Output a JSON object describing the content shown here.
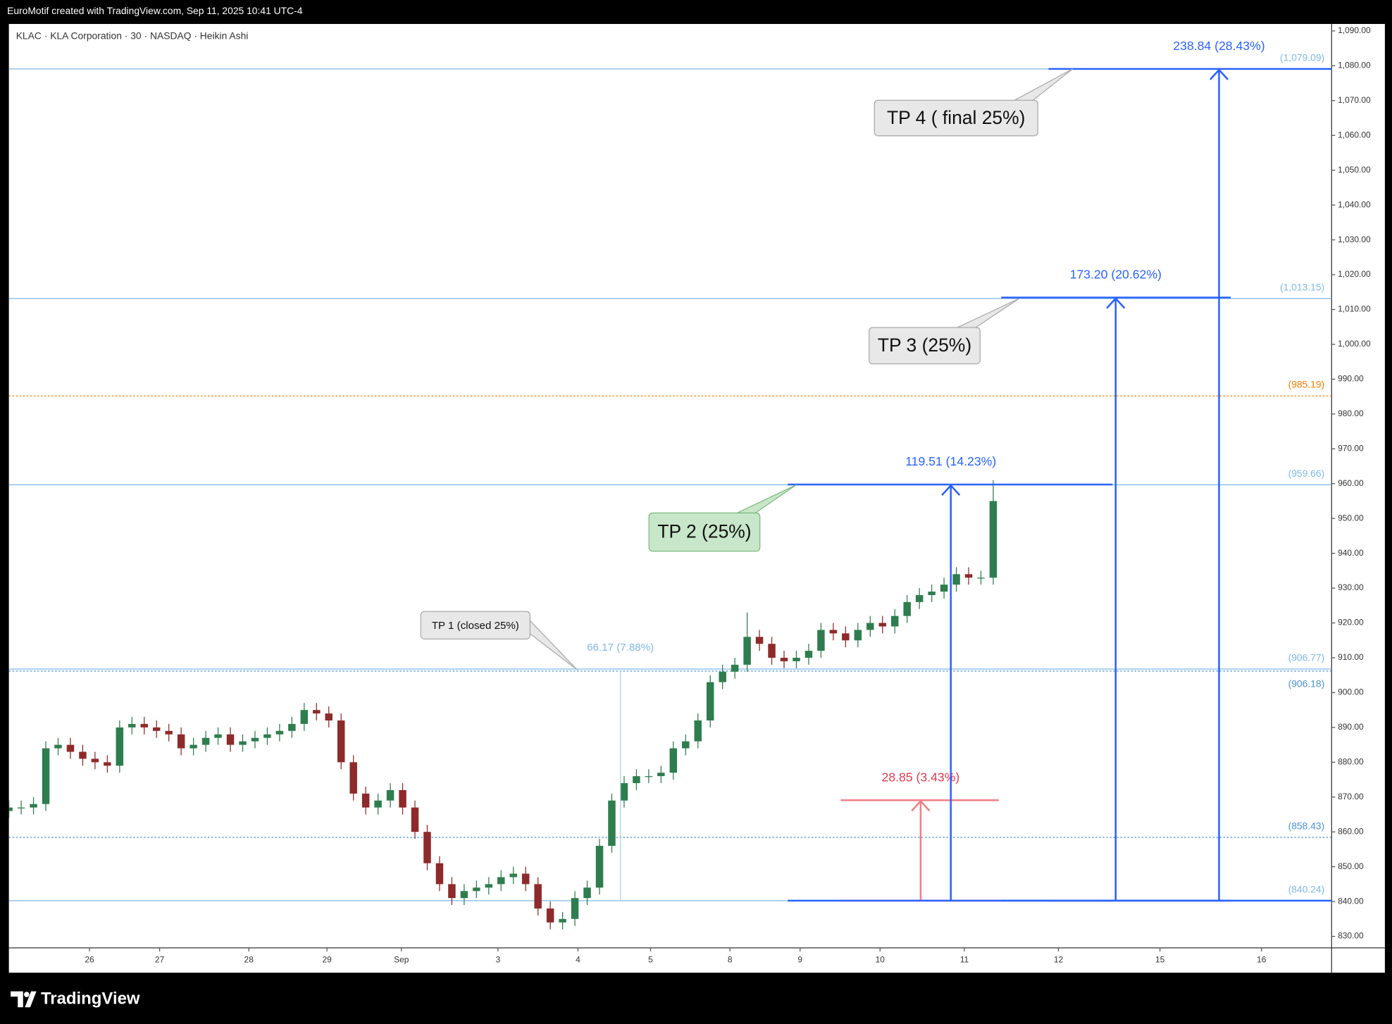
{
  "header": {
    "credit": "EuroMotif created with TradingView.com, Sep 11, 2025 10:41 UTC-4"
  },
  "footer": {
    "brand": "TradingView"
  },
  "chart_data": {
    "type": "candlestick",
    "title": "KLAC · KLA Corporation · 30 · NASDAQ · Heikin Ashi",
    "up_color": "#2e7d4f",
    "down_color": "#8e2a2a",
    "x": [
      0,
      2,
      4,
      6,
      8,
      10,
      12,
      14,
      16,
      18,
      20,
      22,
      24,
      26,
      28,
      30,
      32,
      34,
      36,
      38,
      40,
      42,
      44,
      46,
      48,
      50,
      52,
      54,
      56,
      58,
      60,
      62,
      64,
      66,
      68,
      70,
      72,
      74,
      76,
      78,
      80,
      82,
      84,
      86,
      88,
      90,
      92,
      94,
      96,
      98,
      100,
      102,
      104,
      106,
      108,
      110,
      112,
      114,
      116,
      118,
      120,
      122,
      124,
      126,
      128,
      130,
      132,
      134,
      136,
      138,
      140,
      142,
      144,
      146,
      148,
      150,
      152,
      154,
      156,
      158,
      160
    ],
    "open": [
      866,
      867,
      867,
      868,
      884,
      885,
      883,
      881,
      880,
      879,
      890,
      891,
      890,
      889,
      888,
      884,
      885,
      887,
      888,
      885,
      886,
      887,
      888,
      889,
      891,
      895,
      894,
      892,
      880,
      871,
      867,
      869,
      872,
      867,
      860,
      851,
      845,
      841,
      843,
      844,
      845,
      847,
      848,
      845,
      838,
      834,
      835,
      841,
      844,
      856,
      869,
      874,
      876,
      876,
      877,
      884,
      886,
      892,
      903,
      906,
      908,
      916,
      914,
      910,
      909,
      910,
      912,
      918,
      917,
      915,
      918,
      920,
      919,
      922,
      926,
      928,
      929,
      931,
      934,
      933,
      933
    ],
    "high": [
      869,
      869,
      870,
      886,
      887,
      887,
      885,
      883,
      882,
      892,
      893,
      893,
      892,
      891,
      890,
      887,
      889,
      890,
      890,
      888,
      889,
      890,
      891,
      893,
      897,
      897,
      896,
      894,
      882,
      873,
      871,
      874,
      874,
      869,
      862,
      853,
      847,
      845,
      846,
      847,
      849,
      850,
      850,
      847,
      840,
      837,
      843,
      846,
      858,
      871,
      876,
      878,
      878,
      879,
      886,
      888,
      894,
      905,
      908,
      910,
      923,
      918,
      916,
      912,
      912,
      914,
      920,
      920,
      919,
      920,
      922,
      922,
      924,
      928,
      930,
      931,
      933,
      936,
      936,
      935,
      961
    ],
    "low": [
      864,
      865,
      865,
      866,
      882,
      881,
      879,
      878,
      877,
      877,
      888,
      888,
      887,
      886,
      882,
      882,
      883,
      885,
      883,
      883,
      884,
      885,
      886,
      887,
      889,
      892,
      890,
      878,
      869,
      865,
      865,
      867,
      865,
      858,
      849,
      843,
      839,
      839,
      841,
      842,
      843,
      845,
      843,
      836,
      832,
      832,
      833,
      839,
      842,
      854,
      867,
      872,
      874,
      874,
      875,
      882,
      884,
      890,
      901,
      904,
      906,
      912,
      908,
      907,
      907,
      908,
      910,
      915,
      913,
      913,
      916,
      917,
      917,
      920,
      924,
      926,
      927,
      929,
      931,
      931,
      931
    ],
    "close": [
      867,
      867,
      868,
      884,
      885,
      883,
      881,
      880,
      879,
      890,
      891,
      890,
      889,
      888,
      884,
      885,
      887,
      888,
      885,
      886,
      887,
      888,
      889,
      891,
      895,
      894,
      892,
      880,
      871,
      867,
      869,
      872,
      867,
      860,
      851,
      845,
      841,
      843,
      844,
      845,
      847,
      848,
      845,
      838,
      834,
      835,
      841,
      844,
      856,
      869,
      874,
      876,
      876,
      877,
      884,
      886,
      892,
      903,
      906,
      908,
      916,
      914,
      910,
      909,
      910,
      912,
      918,
      917,
      915,
      918,
      920,
      919,
      922,
      926,
      928,
      929,
      931,
      934,
      933,
      933,
      955
    ],
    "xlim": [
      0,
      215
    ],
    "ylim": [
      826.7,
      1092
    ],
    "xticks": [
      {
        "value": 13.1,
        "label": "26"
      },
      {
        "value": 24.5,
        "label": "27"
      },
      {
        "value": 39,
        "label": "28"
      },
      {
        "value": 51.7,
        "label": "29"
      },
      {
        "value": 63.8,
        "label": "Sep"
      },
      {
        "value": 79.5,
        "label": "3"
      },
      {
        "value": 92.5,
        "label": "4"
      },
      {
        "value": 104.3,
        "label": "5"
      },
      {
        "value": 117.2,
        "label": "8"
      },
      {
        "value": 128.6,
        "label": "9"
      },
      {
        "value": 141.6,
        "label": "10"
      },
      {
        "value": 155.3,
        "label": "11"
      },
      {
        "value": 170.6,
        "label": "12"
      },
      {
        "value": 187.1,
        "label": "15"
      },
      {
        "value": 203.6,
        "label": "16"
      }
    ],
    "yticks": [
      {
        "value": 830,
        "label": "830.00"
      },
      {
        "value": 840,
        "label": "840.00"
      },
      {
        "value": 850,
        "label": "850.00"
      },
      {
        "value": 860,
        "label": "860.00"
      },
      {
        "value": 870,
        "label": "870.00"
      },
      {
        "value": 880,
        "label": "880.00"
      },
      {
        "value": 890,
        "label": "890.00"
      },
      {
        "value": 900,
        "label": "900.00"
      },
      {
        "value": 910,
        "label": "910.00"
      },
      {
        "value": 920,
        "label": "920.00"
      },
      {
        "value": 930,
        "label": "930.00"
      },
      {
        "value": 940,
        "label": "940.00"
      },
      {
        "value": 950,
        "label": "950.00"
      },
      {
        "value": 960,
        "label": "960.00"
      },
      {
        "value": 970,
        "label": "970.00"
      },
      {
        "value": 980,
        "label": "980.00"
      },
      {
        "value": 990,
        "label": "990.00"
      },
      {
        "value": 1000,
        "label": "1,000.00"
      },
      {
        "value": 1010,
        "label": "1,010.00"
      },
      {
        "value": 1020,
        "label": "1,020.00"
      },
      {
        "value": 1030,
        "label": "1,030.00"
      },
      {
        "value": 1040,
        "label": "1,040.00"
      },
      {
        "value": 1050,
        "label": "1,050.00"
      },
      {
        "value": 1060,
        "label": "1,060.00"
      },
      {
        "value": 1070,
        "label": "1,070.00"
      },
      {
        "value": 1080,
        "label": "1,080.00"
      },
      {
        "value": 1090,
        "label": "1,090.00"
      }
    ],
    "levels": [
      {
        "value": 1079.09,
        "label": "(1,079.09)",
        "color": "#7fb8e6",
        "style": "solid"
      },
      {
        "value": 1013.15,
        "label": "(1,013.15)",
        "color": "#7fb8e6",
        "style": "solid"
      },
      {
        "value": 985.19,
        "label": "(985.19)",
        "color": "#f57c00",
        "style": "dotted"
      },
      {
        "value": 959.66,
        "label": "(959.66)",
        "color": "#7fb8e6",
        "style": "solid"
      },
      {
        "value": 906.77,
        "label": "(906.77)",
        "color": "#7fb8e6",
        "style": "solid"
      },
      {
        "value": 906.18,
        "label": "(906.18)",
        "color": "#4a90d9",
        "style": "dotted"
      },
      {
        "value": 858.43,
        "label": "(858.43)",
        "color": "#4a90d9",
        "style": "dotted"
      },
      {
        "value": 840.24,
        "label": "(840.24)",
        "color": "#7fb8e6",
        "style": "solid"
      }
    ],
    "measures": [
      {
        "label": "66.17 (7.88%)",
        "from": 840.24,
        "to": 906.41,
        "x": 99.4,
        "x_start": 99.4,
        "x_end": 99.4,
        "color": "#a8d0ee"
      },
      {
        "label": "28.85 (3.43%)",
        "from": 840.24,
        "to": 869.09,
        "x": 148.2,
        "x_start": 135.2,
        "x_end": 160.9,
        "color": "#ef7f86"
      },
      {
        "label": "119.51 (14.23%)",
        "from": 840.24,
        "to": 959.75,
        "x": 153.1,
        "x_start": 126.6,
        "x_end": 179.4,
        "color": "#2962ff"
      },
      {
        "label": "173.20 (20.62%)",
        "from": 840.24,
        "to": 1013.44,
        "x": 179.9,
        "x_start": 161.3,
        "x_end": 198.6,
        "color": "#2962ff"
      },
      {
        "label": "238.84 (28.43%)",
        "from": 840.24,
        "to": 1079.08,
        "x": 196.7,
        "x_start": 169,
        "x_end": 215,
        "color": "#2962ff"
      }
    ],
    "callouts": [
      {
        "text": "TP 4 ( final 25%)",
        "x": 172.9,
        "y": 1079.09,
        "color": "#e8e8e8"
      },
      {
        "text": "TP 3 (25%)",
        "x": 164.2,
        "y": 1013.15,
        "color": "#e8e8e8"
      },
      {
        "text": "TP 2 (25%)",
        "x": 128,
        "y": 959.66,
        "color": "#c8e6c9"
      },
      {
        "text": "TP 1 (closed 25%)",
        "x": 92.4,
        "y": 906.5,
        "color": "#e8e8e8"
      }
    ]
  }
}
